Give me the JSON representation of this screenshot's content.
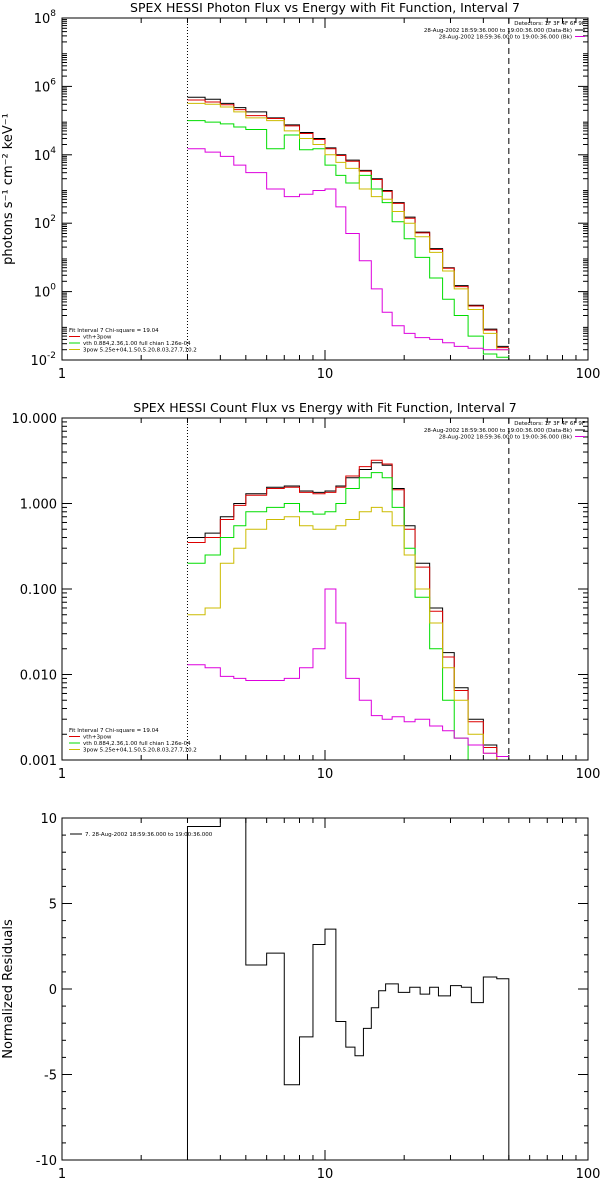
{
  "chart_data": [
    {
      "type": "line",
      "title": "SPEX HESSI Photon Flux vs Energy with Fit Function, Interval 7",
      "ylabel": "photons s⁻¹ cm⁻² keV⁻¹",
      "xlabel": "",
      "xscale": "log",
      "yscale": "log",
      "xlim": [
        1,
        100
      ],
      "ylim": [
        0.01,
        100000000
      ],
      "xticks": [
        {
          "v": 1,
          "label": "1"
        },
        {
          "v": 10,
          "label": "10"
        },
        {
          "v": 100,
          "label": "100"
        }
      ],
      "yticks": [
        {
          "v": 0.01,
          "base": "10",
          "exp": "-2"
        },
        {
          "v": 1,
          "base": "10",
          "exp": "0"
        },
        {
          "v": 100,
          "base": "10",
          "exp": "2"
        },
        {
          "v": 10000,
          "base": "10",
          "exp": "4"
        },
        {
          "v": 1000000,
          "base": "10",
          "exp": "6"
        },
        {
          "v": 100000000,
          "base": "10",
          "exp": "8"
        }
      ],
      "vlines": [
        {
          "x": 3,
          "style": "dotted"
        },
        {
          "x": 50,
          "style": "dashed"
        }
      ],
      "detector_note": "Detectors: 1F 3F 4F 6F 9F",
      "header_legend": [
        {
          "label": "28-Aug-2002 18:59:36.000 to 19:00:36.000 (Data-Bk)",
          "color": "#000000"
        },
        {
          "label": "28-Aug-2002 18:59:36.000 to 19:00:36.000 (Bk)",
          "color": "#dd00dd"
        }
      ],
      "fit_legend": [
        {
          "label": "Fit Interval  7    Chi-square = 19.04",
          "color": ""
        },
        {
          "label": "vth+3pow",
          "color": "#dd0000"
        },
        {
          "label": "vth 0.884,2.36,1.00  full chian 1.26e-04",
          "color": "#00dd00"
        },
        {
          "label": "3pow  5.25e+04,1.50,5.20,8.03,27.7,10.2",
          "color": "#ccbb00"
        }
      ],
      "energy_edges": [
        3,
        3.5,
        4,
        4.5,
        5,
        6,
        7,
        8,
        9,
        10,
        11,
        12,
        13.5,
        15,
        16.5,
        18,
        20,
        22,
        25,
        28,
        31,
        35,
        40,
        45,
        50
      ],
      "series": [
        {
          "name": "Data-Bk",
          "color": "#000000",
          "values": [
            480000,
            420000,
            320000,
            240000,
            180000,
            120000,
            75000,
            45000,
            30000,
            16000,
            10000,
            7000,
            3500,
            2000,
            900,
            400,
            150,
            55,
            18,
            5,
            1.5,
            0.4,
            0.08,
            0.025
          ]
        },
        {
          "name": "vth+3pow",
          "color": "#dd0000",
          "values": [
            400000,
            350000,
            290000,
            210000,
            140000,
            115000,
            70000,
            42000,
            28000,
            15000,
            9500,
            6500,
            3300,
            1900,
            850,
            380,
            140,
            52,
            17,
            4.8,
            1.4,
            0.38,
            0.075,
            0.023
          ]
        },
        {
          "name": "vth",
          "color": "#00dd00",
          "values": [
            100000,
            90000,
            80000,
            65000,
            55000,
            15000,
            38000,
            14000,
            15000,
            5000,
            2500,
            1500,
            2500,
            1000,
            400,
            110,
            35,
            10,
            2.5,
            0.6,
            0.2,
            0.05,
            0.015,
            0.012
          ]
        },
        {
          "name": "3pow",
          "color": "#ccbb00",
          "values": [
            320000,
            300000,
            250000,
            180000,
            120000,
            100000,
            50000,
            30000,
            20000,
            10000,
            6000,
            4000,
            1000,
            600,
            500,
            220,
            100,
            40,
            14,
            4,
            1.2,
            0.3,
            0.06,
            0.02
          ]
        },
        {
          "name": "Bk",
          "color": "#dd00dd",
          "values": [
            15000,
            12000,
            9000,
            5000,
            3000,
            1000,
            600,
            700,
            900,
            1000,
            300,
            50,
            8,
            1.2,
            0.25,
            0.1,
            0.06,
            0.045,
            0.04,
            0.032,
            0.025,
            0.022,
            0.02,
            0.02
          ]
        }
      ]
    },
    {
      "type": "line",
      "title": "SPEX HESSI Count Flux vs Energy with Fit Function, Interval 7",
      "ylabel": "",
      "xlabel": "",
      "xscale": "log",
      "yscale": "log",
      "xlim": [
        1,
        100
      ],
      "ylim": [
        0.001,
        10
      ],
      "xticks": [
        {
          "v": 1,
          "label": "1"
        },
        {
          "v": 10,
          "label": "10"
        },
        {
          "v": 100,
          "label": "100"
        }
      ],
      "yticks": [
        {
          "v": 0.001,
          "label": "0.001"
        },
        {
          "v": 0.01,
          "label": "0.010"
        },
        {
          "v": 0.1,
          "label": "0.100"
        },
        {
          "v": 1,
          "label": "1.000"
        },
        {
          "v": 10,
          "label": "10.000"
        }
      ],
      "vlines": [
        {
          "x": 3,
          "style": "dotted"
        },
        {
          "x": 50,
          "style": "dashed"
        }
      ],
      "detector_note": "Detectors: 1F 3F 4F 6F 9F",
      "header_legend": [
        {
          "label": "28-Aug-2002 18:59:36.000 to 19:00:36.000 (Data-Bk)",
          "color": "#000000"
        },
        {
          "label": "28-Aug-2002 18:59:36.000 to 19:00:36.000 (Bk)",
          "color": "#dd00dd"
        }
      ],
      "fit_legend": [
        {
          "label": "Fit Interval  7    Chi-square = 19.04",
          "color": ""
        },
        {
          "label": "vth+3pow",
          "color": "#dd0000"
        },
        {
          "label": "vth 0.884,2.36,1.00  full chian 1.26e-04",
          "color": "#00dd00"
        },
        {
          "label": "3pow  5.25e+04,1.50,5.20,8.03,27.7,10.2",
          "color": "#ccbb00"
        }
      ],
      "energy_edges": [
        3,
        3.5,
        4,
        4.5,
        5,
        6,
        7,
        8,
        9,
        10,
        11,
        12,
        13.5,
        15,
        16.5,
        18,
        20,
        22,
        25,
        28,
        31,
        35,
        40,
        45,
        50
      ],
      "series": [
        {
          "name": "Data-Bk",
          "color": "#000000",
          "values": [
            0.4,
            0.45,
            0.7,
            1.0,
            1.3,
            1.55,
            1.6,
            1.4,
            1.35,
            1.4,
            1.6,
            2.0,
            2.5,
            3.0,
            2.8,
            1.5,
            0.55,
            0.2,
            0.06,
            0.018,
            0.007,
            0.003,
            0.0015,
            0.0011
          ]
        },
        {
          "name": "vth+3pow",
          "color": "#dd0000",
          "values": [
            0.35,
            0.4,
            0.65,
            0.95,
            1.25,
            1.5,
            1.55,
            1.35,
            1.3,
            1.35,
            1.55,
            2.1,
            2.7,
            3.2,
            2.9,
            1.45,
            0.5,
            0.18,
            0.055,
            0.016,
            0.0065,
            0.0028,
            0.0014,
            0.001
          ]
        },
        {
          "name": "vth",
          "color": "#00dd00",
          "values": [
            0.2,
            0.25,
            0.4,
            0.55,
            0.8,
            0.9,
            1.0,
            0.8,
            0.75,
            0.8,
            1.0,
            1.5,
            2.0,
            2.3,
            2.0,
            0.9,
            0.3,
            0.08,
            0.02,
            0.005,
            0.0018,
            0.0009,
            0.0009,
            0.0009
          ]
        },
        {
          "name": "3pow",
          "color": "#ccbb00",
          "values": [
            0.05,
            0.06,
            0.2,
            0.3,
            0.5,
            0.65,
            0.7,
            0.55,
            0.5,
            0.5,
            0.55,
            0.65,
            0.8,
            0.9,
            0.8,
            0.55,
            0.25,
            0.1,
            0.04,
            0.012,
            0.005,
            0.002,
            0.0012,
            0.001
          ]
        },
        {
          "name": "Bk",
          "color": "#dd00dd",
          "values": [
            0.013,
            0.012,
            0.0095,
            0.009,
            0.0085,
            0.0085,
            0.009,
            0.012,
            0.02,
            0.1,
            0.04,
            0.009,
            0.005,
            0.0033,
            0.003,
            0.0032,
            0.0028,
            0.003,
            0.0025,
            0.0022,
            0.0018,
            0.0015,
            0.0012,
            0.0011
          ]
        }
      ]
    },
    {
      "type": "line",
      "title": "",
      "ylabel": "Normalized Residuals",
      "xlabel": "",
      "xscale": "log",
      "yscale": "linear",
      "xlim": [
        1,
        100
      ],
      "ylim": [
        -10,
        10
      ],
      "xticks": [
        {
          "v": 1,
          "label": "1"
        },
        {
          "v": 10,
          "label": "10"
        },
        {
          "v": 100,
          "label": "100"
        }
      ],
      "yticks": [
        {
          "v": -10,
          "label": "-10"
        },
        {
          "v": -5,
          "label": "-5"
        },
        {
          "v": 0,
          "label": "0"
        },
        {
          "v": 5,
          "label": "5"
        },
        {
          "v": 10,
          "label": "10"
        }
      ],
      "legend": [
        {
          "label": "7. 28-Aug-2002 18:59:36.000 to 19:00:36.000",
          "color": "#000000"
        }
      ],
      "energy_edges": [
        3,
        4,
        5,
        6,
        7,
        8,
        9,
        10,
        11,
        12,
        13,
        14,
        15,
        16,
        17,
        19,
        21,
        23,
        25,
        27,
        30,
        33,
        36,
        40,
        45,
        50
      ],
      "series": [
        {
          "name": "residuals",
          "color": "#000000",
          "values": [
            9.5,
            10,
            1.4,
            2.1,
            -5.6,
            -2.8,
            2.6,
            3.5,
            -1.9,
            -3.4,
            -3.9,
            -2.3,
            -1.1,
            -0.1,
            0.3,
            -0.2,
            0.1,
            -0.3,
            0.1,
            -0.4,
            0.2,
            0.1,
            -0.8,
            0.7,
            0.6
          ]
        }
      ]
    }
  ]
}
